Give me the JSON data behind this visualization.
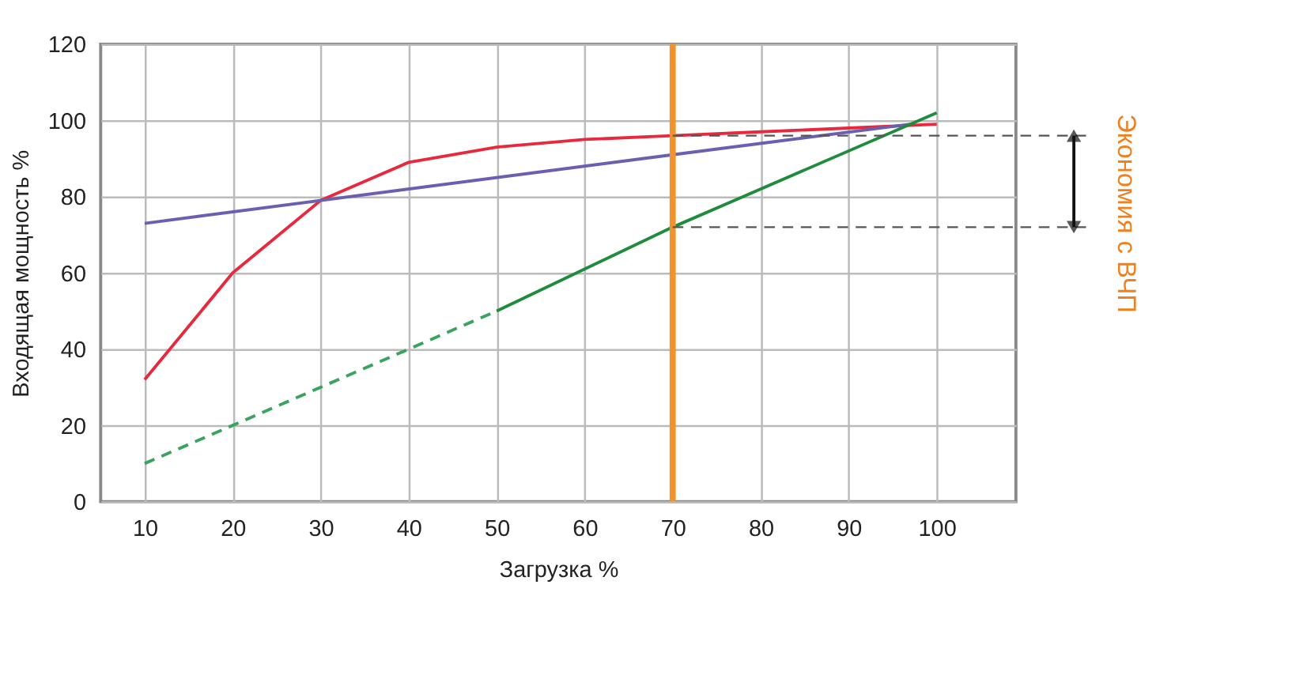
{
  "chart_data": {
    "type": "line",
    "xlabel": "Загрузка %",
    "ylabel": "Входящая мощность %",
    "xlim": [
      5,
      109
    ],
    "xticks": [
      10,
      20,
      30,
      40,
      50,
      60,
      70,
      80,
      90,
      100
    ],
    "ylim": [
      0,
      120
    ],
    "yticks": [
      0,
      20,
      40,
      60,
      80,
      100,
      120
    ],
    "grid": true,
    "marker": "none",
    "series": [
      {
        "color": "#e8283c",
        "x": [
          10,
          20,
          30,
          40,
          50,
          60,
          70,
          80,
          90,
          100
        ],
        "values": [
          32,
          60,
          79,
          89,
          93,
          95,
          96,
          97,
          98,
          99
        ],
        "line_style": "solid"
      },
      {
        "color": "#6a5fb0",
        "x": [
          10,
          70,
          97
        ],
        "values": [
          73,
          91,
          99
        ],
        "line_style": "solid"
      },
      {
        "color": "#3aa35e",
        "x": [
          10,
          50
        ],
        "values": [
          10,
          50
        ],
        "line_style": "dashed"
      },
      {
        "color": "#1e8c3c",
        "x": [
          50,
          70,
          100
        ],
        "values": [
          50,
          72,
          102
        ],
        "line_style": "solid"
      }
    ],
    "ref_lines": [
      {
        "axis": "x",
        "value": 70,
        "color": "#f0932b",
        "line_style": "solid"
      },
      {
        "axis": "y",
        "value": 96,
        "color": "#555555",
        "line_style": "dashed"
      },
      {
        "axis": "y",
        "value": 72,
        "color": "#555555",
        "line_style": "dashed"
      }
    ],
    "annotations": [
      "Экономия с ВЧП"
    ]
  }
}
